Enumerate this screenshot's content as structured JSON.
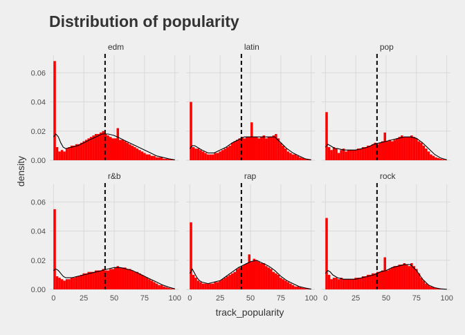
{
  "chart_data": {
    "type": "bar",
    "title": "Distribution of popularity",
    "xlabel": "track_popularity",
    "ylabel": "density",
    "xlim": [
      -3,
      103
    ],
    "ylim": [
      0,
      0.072
    ],
    "x_ticks": [
      0,
      25,
      50,
      75,
      100
    ],
    "y_ticks": [
      0.0,
      0.02,
      0.04,
      0.06
    ],
    "y_tick_labels": [
      "0.00",
      "0.02",
      "0.04",
      "0.06"
    ],
    "reference_line_x": 42.5,
    "bin_width": 2,
    "bar_color": "#ff0000",
    "density_line_color": "#000000",
    "reference_line_color": "#000000",
    "grid": true,
    "facets": [
      {
        "label": "edm",
        "bin_start": [
          0,
          2,
          4,
          6,
          8,
          10,
          12,
          14,
          16,
          18,
          20,
          22,
          24,
          26,
          28,
          30,
          32,
          34,
          36,
          38,
          40,
          42,
          44,
          46,
          48,
          50,
          52,
          54,
          56,
          58,
          60,
          62,
          64,
          66,
          68,
          70,
          72,
          74,
          76,
          78,
          80,
          82,
          84,
          86,
          88,
          90,
          92,
          94,
          96,
          98
        ],
        "hist_values": [
          0.068,
          0.009,
          0.006,
          0.007,
          0.006,
          0.008,
          0.009,
          0.01,
          0.01,
          0.011,
          0.011,
          0.012,
          0.013,
          0.014,
          0.015,
          0.016,
          0.017,
          0.018,
          0.018,
          0.019,
          0.02,
          0.018,
          0.017,
          0.016,
          0.015,
          0.015,
          0.022,
          0.014,
          0.014,
          0.013,
          0.012,
          0.011,
          0.01,
          0.009,
          0.008,
          0.007,
          0.006,
          0.005,
          0.004,
          0.004,
          0.003,
          0.003,
          0.002,
          0.002,
          0.002,
          0.001,
          0.001,
          0.0008,
          0.0005,
          0.0003
        ],
        "density_x": [
          0,
          2,
          4,
          6,
          8,
          10,
          15,
          20,
          25,
          30,
          35,
          40,
          45,
          50,
          55,
          60,
          65,
          70,
          75,
          80,
          85,
          90,
          95,
          100
        ],
        "density_y": [
          0.016,
          0.018,
          0.016,
          0.012,
          0.009,
          0.008,
          0.009,
          0.01,
          0.012,
          0.014,
          0.016,
          0.018,
          0.018,
          0.017,
          0.015,
          0.013,
          0.011,
          0.009,
          0.007,
          0.005,
          0.003,
          0.002,
          0.001,
          0.0003
        ]
      },
      {
        "label": "latin",
        "bin_start": [
          0,
          2,
          4,
          6,
          8,
          10,
          12,
          14,
          16,
          18,
          20,
          22,
          24,
          26,
          28,
          30,
          32,
          34,
          36,
          38,
          40,
          42,
          44,
          46,
          48,
          50,
          52,
          54,
          56,
          58,
          60,
          62,
          64,
          66,
          68,
          70,
          72,
          74,
          76,
          78,
          80,
          82,
          84,
          86,
          88,
          90,
          92,
          94,
          96,
          98
        ],
        "hist_values": [
          0.04,
          0.009,
          0.008,
          0.008,
          0.007,
          0.006,
          0.005,
          0.004,
          0.004,
          0.004,
          0.005,
          0.005,
          0.006,
          0.007,
          0.008,
          0.009,
          0.01,
          0.012,
          0.013,
          0.014,
          0.015,
          0.016,
          0.015,
          0.016,
          0.016,
          0.026,
          0.016,
          0.016,
          0.015,
          0.016,
          0.017,
          0.015,
          0.016,
          0.016,
          0.017,
          0.018,
          0.015,
          0.012,
          0.01,
          0.008,
          0.006,
          0.005,
          0.004,
          0.004,
          0.003,
          0.002,
          0.0015,
          0.001,
          0.0005,
          0.0003
        ],
        "density_x": [
          0,
          2,
          4,
          6,
          8,
          10,
          15,
          20,
          25,
          30,
          35,
          40,
          45,
          50,
          55,
          60,
          65,
          70,
          75,
          80,
          85,
          90,
          95,
          100
        ],
        "density_y": [
          0.008,
          0.01,
          0.01,
          0.009,
          0.008,
          0.007,
          0.005,
          0.005,
          0.007,
          0.009,
          0.012,
          0.014,
          0.016,
          0.016,
          0.016,
          0.016,
          0.016,
          0.016,
          0.012,
          0.008,
          0.005,
          0.003,
          0.001,
          0.0003
        ]
      },
      {
        "label": "pop",
        "bin_start": [
          0,
          2,
          4,
          6,
          8,
          10,
          12,
          14,
          16,
          18,
          20,
          22,
          24,
          26,
          28,
          30,
          32,
          34,
          36,
          38,
          40,
          42,
          44,
          46,
          48,
          50,
          52,
          54,
          56,
          58,
          60,
          62,
          64,
          66,
          68,
          70,
          72,
          74,
          76,
          78,
          80,
          82,
          84,
          86,
          88,
          90,
          92,
          94,
          96,
          98
        ],
        "hist_values": [
          0.033,
          0.009,
          0.007,
          0.009,
          0.008,
          0.005,
          0.007,
          0.008,
          0.006,
          0.007,
          0.007,
          0.007,
          0.007,
          0.008,
          0.008,
          0.009,
          0.009,
          0.01,
          0.01,
          0.011,
          0.012,
          0.011,
          0.012,
          0.013,
          0.019,
          0.013,
          0.014,
          0.013,
          0.014,
          0.015,
          0.016,
          0.017,
          0.016,
          0.016,
          0.016,
          0.017,
          0.016,
          0.015,
          0.013,
          0.012,
          0.01,
          0.008,
          0.006,
          0.004,
          0.003,
          0.002,
          0.0015,
          0.001,
          0.0006,
          0.0003
        ],
        "density_x": [
          0,
          2,
          4,
          6,
          8,
          10,
          15,
          20,
          25,
          30,
          35,
          40,
          45,
          50,
          55,
          60,
          65,
          70,
          75,
          80,
          85,
          90,
          95,
          100
        ],
        "density_y": [
          0.009,
          0.011,
          0.01,
          0.009,
          0.008,
          0.008,
          0.007,
          0.007,
          0.007,
          0.008,
          0.009,
          0.011,
          0.012,
          0.013,
          0.014,
          0.015,
          0.016,
          0.016,
          0.015,
          0.012,
          0.008,
          0.004,
          0.0015,
          0.0003
        ]
      },
      {
        "label": "r&b",
        "bin_start": [
          0,
          2,
          4,
          6,
          8,
          10,
          12,
          14,
          16,
          18,
          20,
          22,
          24,
          26,
          28,
          30,
          32,
          34,
          36,
          38,
          40,
          42,
          44,
          46,
          48,
          50,
          52,
          54,
          56,
          58,
          60,
          62,
          64,
          66,
          68,
          70,
          72,
          74,
          76,
          78,
          80,
          82,
          84,
          86,
          88,
          90,
          92,
          94,
          96,
          98
        ],
        "hist_values": [
          0.055,
          0.009,
          0.008,
          0.007,
          0.006,
          0.007,
          0.007,
          0.008,
          0.008,
          0.009,
          0.009,
          0.01,
          0.011,
          0.011,
          0.012,
          0.012,
          0.012,
          0.013,
          0.013,
          0.013,
          0.014,
          0.013,
          0.013,
          0.014,
          0.014,
          0.015,
          0.016,
          0.015,
          0.015,
          0.015,
          0.014,
          0.014,
          0.013,
          0.012,
          0.012,
          0.011,
          0.01,
          0.009,
          0.008,
          0.007,
          0.006,
          0.005,
          0.004,
          0.003,
          0.003,
          0.002,
          0.0015,
          0.001,
          0.0006,
          0.0003
        ],
        "density_x": [
          0,
          2,
          4,
          6,
          8,
          10,
          15,
          20,
          25,
          30,
          35,
          40,
          45,
          50,
          55,
          60,
          65,
          70,
          75,
          80,
          85,
          90,
          95,
          100
        ],
        "density_y": [
          0.013,
          0.014,
          0.013,
          0.011,
          0.009,
          0.008,
          0.008,
          0.009,
          0.01,
          0.011,
          0.012,
          0.013,
          0.014,
          0.015,
          0.015,
          0.014,
          0.013,
          0.011,
          0.009,
          0.007,
          0.005,
          0.003,
          0.0015,
          0.0004
        ]
      },
      {
        "label": "rap",
        "bin_start": [
          0,
          2,
          4,
          6,
          8,
          10,
          12,
          14,
          16,
          18,
          20,
          22,
          24,
          26,
          28,
          30,
          32,
          34,
          36,
          38,
          40,
          42,
          44,
          46,
          48,
          50,
          52,
          54,
          56,
          58,
          60,
          62,
          64,
          66,
          68,
          70,
          72,
          74,
          76,
          78,
          80,
          82,
          84,
          86,
          88,
          90,
          92,
          94,
          96,
          98
        ],
        "hist_values": [
          0.046,
          0.01,
          0.008,
          0.006,
          0.005,
          0.004,
          0.004,
          0.004,
          0.004,
          0.004,
          0.005,
          0.005,
          0.006,
          0.007,
          0.008,
          0.009,
          0.01,
          0.011,
          0.012,
          0.014,
          0.015,
          0.016,
          0.017,
          0.018,
          0.024,
          0.019,
          0.021,
          0.02,
          0.019,
          0.018,
          0.018,
          0.016,
          0.015,
          0.014,
          0.012,
          0.011,
          0.01,
          0.008,
          0.007,
          0.006,
          0.005,
          0.004,
          0.003,
          0.002,
          0.002,
          0.0015,
          0.001,
          0.0007,
          0.0004,
          0.0002
        ],
        "density_x": [
          0,
          2,
          4,
          6,
          8,
          10,
          15,
          20,
          25,
          30,
          35,
          40,
          45,
          50,
          55,
          60,
          65,
          70,
          75,
          80,
          85,
          90,
          95,
          100
        ],
        "density_y": [
          0.011,
          0.014,
          0.011,
          0.008,
          0.006,
          0.005,
          0.004,
          0.005,
          0.006,
          0.009,
          0.012,
          0.015,
          0.017,
          0.019,
          0.02,
          0.018,
          0.016,
          0.013,
          0.009,
          0.006,
          0.004,
          0.002,
          0.001,
          0.0002
        ]
      },
      {
        "label": "rock",
        "bin_start": [
          0,
          2,
          4,
          6,
          8,
          10,
          12,
          14,
          16,
          18,
          20,
          22,
          24,
          26,
          28,
          30,
          32,
          34,
          36,
          38,
          40,
          42,
          44,
          46,
          48,
          50,
          52,
          54,
          56,
          58,
          60,
          62,
          64,
          66,
          68,
          70,
          72,
          74,
          76,
          78,
          80,
          82,
          84,
          86,
          88,
          90,
          92,
          94,
          96,
          98
        ],
        "hist_values": [
          0.049,
          0.01,
          0.007,
          0.008,
          0.008,
          0.007,
          0.008,
          0.007,
          0.007,
          0.007,
          0.007,
          0.007,
          0.008,
          0.008,
          0.008,
          0.009,
          0.009,
          0.01,
          0.01,
          0.011,
          0.011,
          0.012,
          0.012,
          0.013,
          0.022,
          0.013,
          0.014,
          0.015,
          0.016,
          0.016,
          0.017,
          0.017,
          0.018,
          0.017,
          0.016,
          0.018,
          0.016,
          0.014,
          0.011,
          0.008,
          0.006,
          0.004,
          0.003,
          0.002,
          0.0015,
          0.001,
          0.0007,
          0.0005,
          0.0003,
          0.0002
        ],
        "density_x": [
          0,
          2,
          4,
          6,
          8,
          10,
          15,
          20,
          25,
          30,
          35,
          40,
          45,
          50,
          55,
          60,
          65,
          70,
          75,
          80,
          85,
          90,
          95,
          100
        ],
        "density_y": [
          0.011,
          0.013,
          0.012,
          0.01,
          0.009,
          0.008,
          0.007,
          0.007,
          0.007,
          0.008,
          0.009,
          0.01,
          0.012,
          0.013,
          0.015,
          0.016,
          0.017,
          0.017,
          0.013,
          0.007,
          0.003,
          0.0012,
          0.0004,
          0.0001
        ]
      }
    ]
  }
}
